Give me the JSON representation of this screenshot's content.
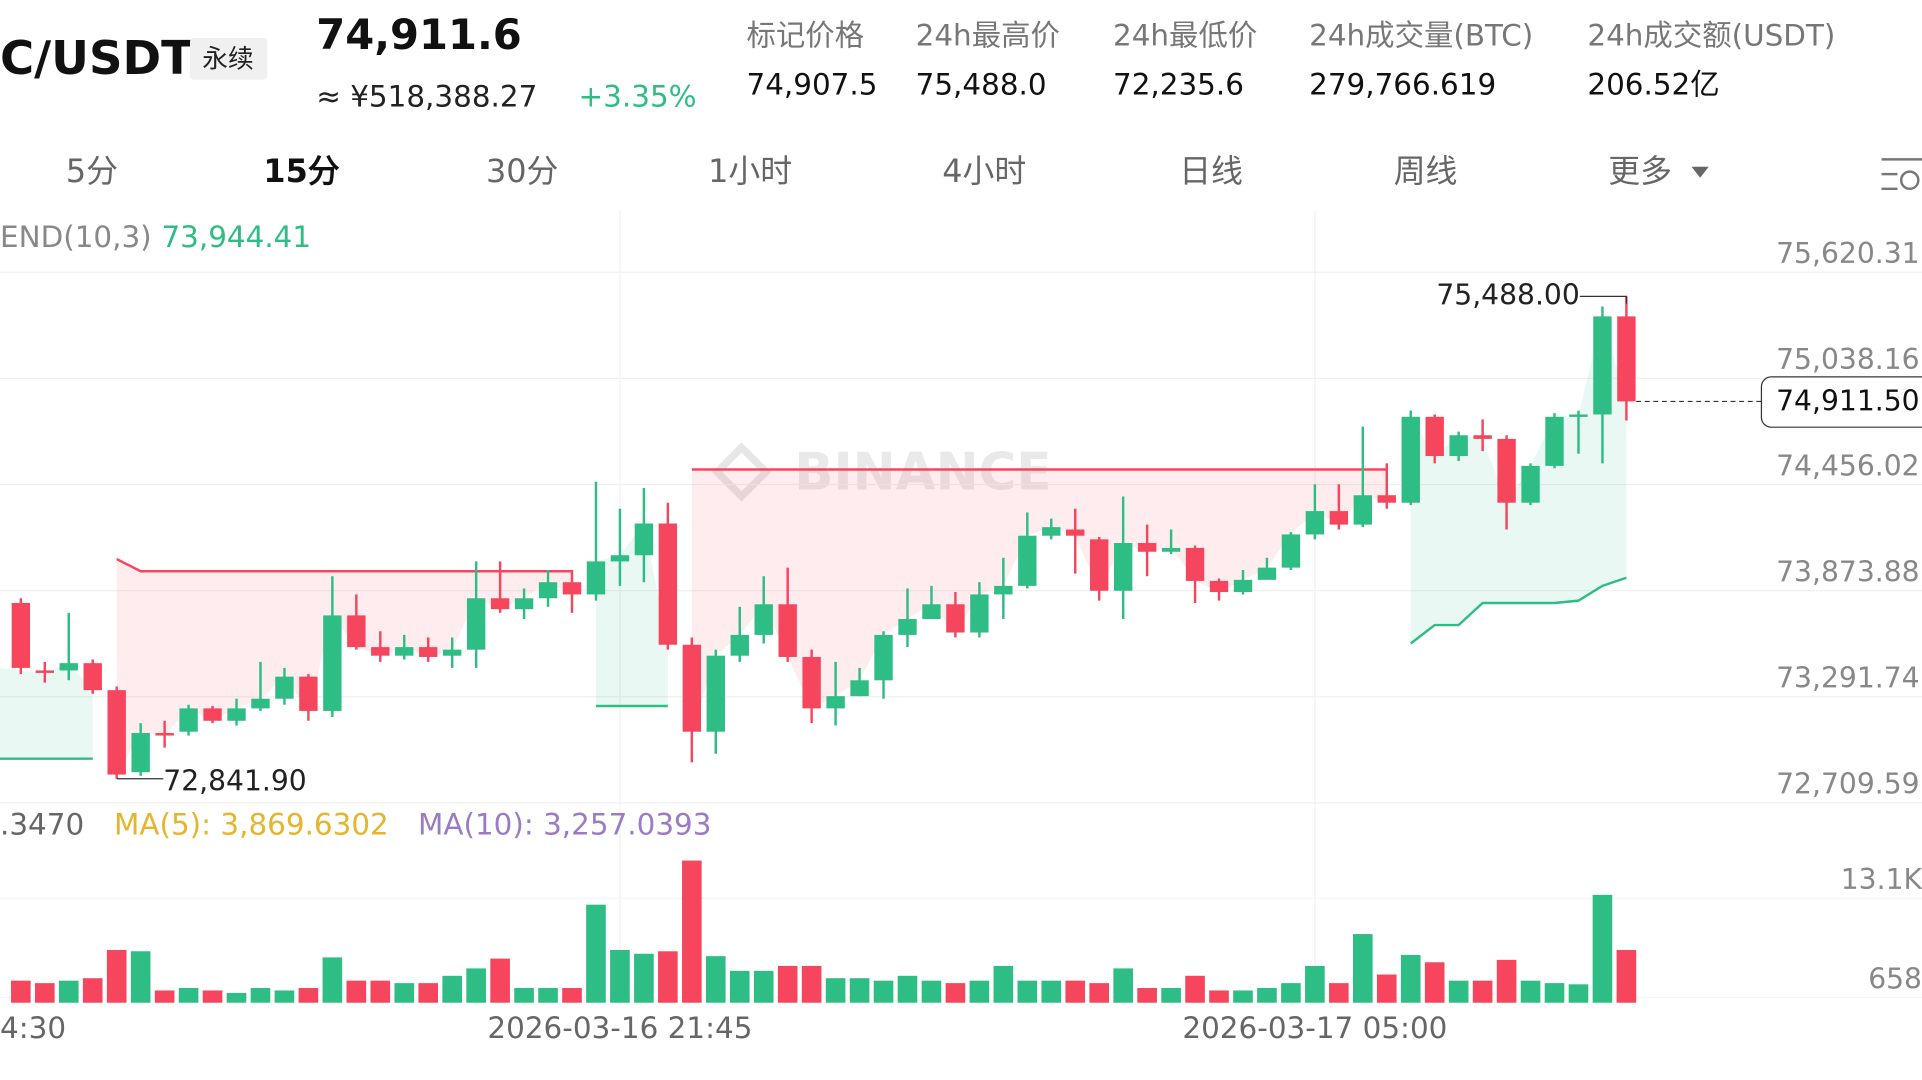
{
  "header": {
    "symbol": "C/USDT",
    "contract_type": "永续",
    "last_price": "74,911.6",
    "cny_price": "≈ ¥518,388.27",
    "change": "+3.35%",
    "stats": [
      {
        "label": "标记价格",
        "value": "74,907.5"
      },
      {
        "label": "24h最高价",
        "value": "75,488.0"
      },
      {
        "label": "24h最低价",
        "value": "72,235.6"
      },
      {
        "label": "24h成交量(BTC)",
        "value": "279,766.619"
      },
      {
        "label": "24h成交额(USDT)",
        "value": "206.52亿"
      }
    ]
  },
  "tabs": [
    "5分",
    "15分",
    "30分",
    "1小时",
    "4小时",
    "日线",
    "周线",
    "更多"
  ],
  "active_tab": 1,
  "watermark": "BINANCE",
  "chart_data": [
    {
      "type": "candlestick",
      "indicator_label": "END(10,3)",
      "indicator_value_label": "73,944.41",
      "x_edge_label": "4:30",
      "categories": [
        null,
        null,
        null,
        null,
        null,
        null,
        null,
        null,
        null,
        null,
        null,
        null,
        null,
        null,
        null,
        null,
        null,
        null,
        null,
        null,
        null,
        null,
        null,
        null,
        null,
        "2026-03-16 21:45",
        null,
        null,
        null,
        null,
        null,
        null,
        null,
        null,
        null,
        null,
        null,
        null,
        null,
        null,
        null,
        null,
        null,
        null,
        null,
        null,
        null,
        null,
        null,
        null,
        null,
        null,
        null,
        null,
        "2026-03-17 05:00",
        null,
        null,
        null,
        null,
        null,
        null,
        null,
        null,
        null,
        null,
        null,
        null,
        null
      ],
      "open": [
        73806,
        73436,
        73436,
        73476,
        73328,
        72878,
        73093,
        73100,
        73228,
        73160,
        73228,
        73281,
        73402,
        73214,
        73738,
        73564,
        73517,
        73564,
        73517,
        73550,
        73832,
        73772,
        73832,
        73920,
        73853,
        74034,
        74068,
        74242,
        73577,
        73100,
        73517,
        73631,
        73799,
        73510,
        73228,
        73295,
        73382,
        73631,
        73718,
        73799,
        73644,
        73853,
        73900,
        74175,
        74209,
        74155,
        73873,
        74135,
        74087,
        74108,
        73927,
        73866,
        73933,
        74000,
        74182,
        74310,
        74236,
        74397,
        74356,
        74827,
        74612,
        74726,
        74706,
        74356,
        74558,
        74827,
        74840,
        75378
      ],
      "high": [
        73832,
        73483,
        73752,
        73496,
        73348,
        73147,
        73160,
        73248,
        73241,
        73281,
        73483,
        73450,
        73416,
        73953,
        73853,
        73651,
        73631,
        73617,
        73617,
        74034,
        74034,
        73886,
        73987,
        73987,
        74471,
        74323,
        74437,
        74356,
        73617,
        73550,
        73785,
        73953,
        74000,
        73550,
        73483,
        73450,
        73651,
        73886,
        73900,
        73866,
        73920,
        74054,
        74302,
        74269,
        74323,
        74168,
        74390,
        74236,
        74209,
        74121,
        73940,
        73987,
        74054,
        74195,
        74457,
        74457,
        74773,
        74572,
        74861,
        74840,
        74746,
        74813,
        74726,
        74572,
        74847,
        74861,
        75432,
        75488.0
      ],
      "low": [
        73416,
        73369,
        73382,
        73308,
        72841.9,
        72858,
        73013,
        73079,
        73147,
        73134,
        73214,
        73248,
        73160,
        73181,
        73550,
        73483,
        73496,
        73483,
        73450,
        73450,
        73752,
        73718,
        73785,
        73752,
        73819,
        73900,
        73920,
        73550,
        72932,
        72979,
        73483,
        73584,
        73483,
        73147,
        73134,
        73295,
        73281,
        73564,
        73718,
        73617,
        73617,
        73718,
        73886,
        74155,
        73967,
        73819,
        73718,
        73953,
        74074,
        73806,
        73819,
        73853,
        73940,
        73987,
        74155,
        74209,
        74222,
        74323,
        74343,
        74572,
        74585,
        74639,
        74209,
        74343,
        74545,
        74625,
        74572,
        74807
      ],
      "close": [
        73450,
        73423,
        73476,
        73328,
        72865,
        73093,
        73079,
        73228,
        73160,
        73228,
        73281,
        73402,
        73214,
        73738,
        73564,
        73517,
        73564,
        73510,
        73550,
        73832,
        73772,
        73832,
        73920,
        73853,
        74034,
        74068,
        74242,
        73577,
        73100,
        73517,
        73631,
        73799,
        73510,
        73228,
        73295,
        73382,
        73631,
        73718,
        73799,
        73644,
        73853,
        73900,
        74175,
        74222,
        74175,
        73873,
        74135,
        74087,
        74108,
        73927,
        73866,
        73933,
        74000,
        74182,
        74310,
        74236,
        74397,
        74356,
        74827,
        74612,
        74726,
        74706,
        74356,
        74558,
        74827,
        74840,
        75378,
        74911.5
      ],
      "supertrend_up": [
        72952,
        72952,
        72952,
        72952,
        null,
        null,
        null,
        null,
        null,
        null,
        null,
        null,
        null,
        null,
        null,
        null,
        null,
        null,
        null,
        null,
        null,
        null,
        null,
        null,
        73241,
        73241,
        73241,
        73241,
        null,
        null,
        null,
        null,
        null,
        null,
        null,
        null,
        null,
        null,
        null,
        null,
        null,
        null,
        null,
        null,
        null,
        null,
        null,
        null,
        null,
        null,
        null,
        null,
        null,
        null,
        null,
        null,
        null,
        null,
        73584,
        73685,
        73685,
        73806,
        73806,
        73806,
        73806,
        73819,
        73900,
        73944.41
      ],
      "supertrend_down": [
        null,
        null,
        null,
        null,
        74047,
        73980,
        73980,
        73980,
        73980,
        73980,
        73980,
        73980,
        73980,
        73980,
        73980,
        73980,
        73980,
        73980,
        73980,
        73980,
        73980,
        73980,
        73980,
        73980,
        null,
        null,
        null,
        null,
        74538,
        74538,
        74538,
        74538,
        74538,
        74538,
        74538,
        74538,
        74538,
        74538,
        74538,
        74538,
        74538,
        74538,
        74538,
        74538,
        74538,
        74538,
        74538,
        74538,
        74538,
        74538,
        74538,
        74538,
        74538,
        74538,
        74538,
        74538,
        74538,
        74538,
        null,
        null,
        null,
        null,
        null,
        null,
        null,
        null,
        null,
        null
      ],
      "high_label": "75,488.00",
      "low_label": "72,841.90",
      "last_label": "74,911.50",
      "ylim": [
        72700,
        75960
      ],
      "yticks": [
        {
          "value": 75620.31,
          "label": "75,620.31"
        },
        {
          "value": 75038.16,
          "label": "75,038.16"
        },
        {
          "value": 74456.02,
          "label": "74,456.02"
        },
        {
          "value": 73873.88,
          "label": "73,873.88"
        },
        {
          "value": 73291.74,
          "label": "73,291.74"
        },
        {
          "value": 72709.59,
          "label": "72,709.59"
        }
      ],
      "up_color": "#2ebd85",
      "down_color": "#f6465d",
      "grid": true
    },
    {
      "type": "bar",
      "ma_labels": [
        {
          "text": ".3470",
          "color": "#666666"
        },
        {
          "text": "MA(5): 3,869.6302",
          "color": "#e6b52c"
        },
        {
          "text": "MA(10): 3,257.0393",
          "color": "#9b7cc4"
        }
      ],
      "values": [
        2770,
        2460,
        2770,
        3080,
        6620,
        6460,
        1540,
        1850,
        1540,
        1230,
        1850,
        1540,
        1850,
        5690,
        2770,
        2770,
        2460,
        2460,
        3380,
        4310,
        5540,
        1850,
        1850,
        1850,
        12310,
        6620,
        6150,
        6460,
        17850,
        5850,
        4000,
        4000,
        4620,
        4620,
        3080,
        3080,
        2770,
        3380,
        2770,
        2460,
        2770,
        4620,
        2770,
        2770,
        2770,
        2460,
        4310,
        1850,
        1850,
        3380,
        1540,
        1540,
        1850,
        2460,
        4620,
        2460,
        8620,
        3540,
        6000,
        5080,
        2770,
        2770,
        5380,
        2770,
        2460,
        2310,
        13540,
        6620
      ],
      "ylim": [
        0,
        19700
      ],
      "yticks": [
        {
          "value": 13100,
          "label": "13.1K"
        },
        658
      ]
    }
  ]
}
